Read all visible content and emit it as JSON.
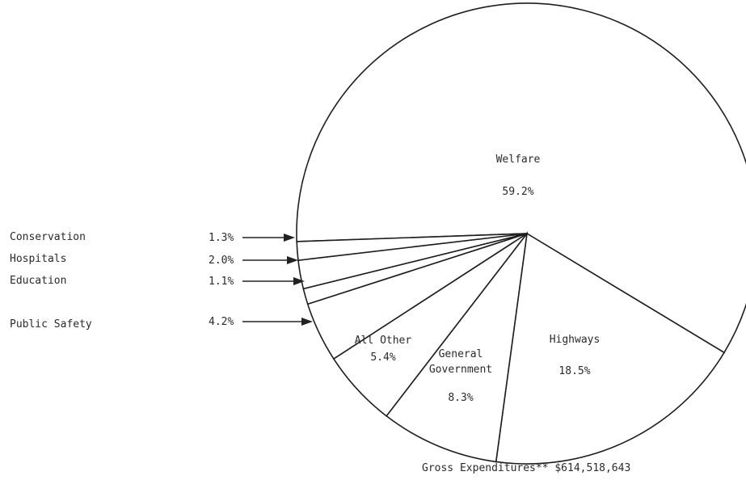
{
  "chart_data": {
    "type": "pie",
    "slices": [
      {
        "label": "Welfare",
        "percent_text": "59.2%",
        "value": 59.2,
        "label_mode": "inside",
        "label_lines": [
          "Welfare"
        ]
      },
      {
        "label": "Highways",
        "percent_text": "18.5%",
        "value": 18.5,
        "label_mode": "inside",
        "label_lines": [
          "Highways"
        ]
      },
      {
        "label": "General Government",
        "percent_text": "8.3%",
        "value": 8.3,
        "label_mode": "inside",
        "label_lines": [
          "General",
          "Government"
        ]
      },
      {
        "label": "All Other",
        "percent_text": "5.4%",
        "value": 5.4,
        "label_mode": "inside",
        "label_lines": [
          "All Other"
        ]
      },
      {
        "label": "Public Safety",
        "percent_text": "4.2%",
        "value": 4.2,
        "label_mode": "outside"
      },
      {
        "label": "Education",
        "percent_text": "1.1%",
        "value": 1.1,
        "label_mode": "outside"
      },
      {
        "label": "Hospitals",
        "percent_text": "2.0%",
        "value": 2.0,
        "label_mode": "outside"
      },
      {
        "label": "Conservation",
        "percent_text": "1.3%",
        "value": 1.3,
        "label_mode": "outside"
      }
    ],
    "footer": "Gross Expenditures** $614,518,643",
    "legend": "none"
  }
}
